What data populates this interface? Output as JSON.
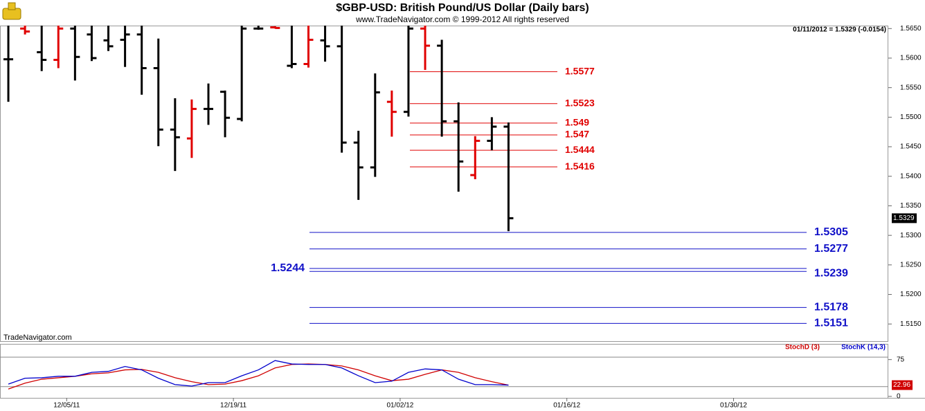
{
  "title": "$GBP-USD:  British Pound/US Dollar  (Daily bars)",
  "subtitle": "www.TradeNavigator.com © 1999-2012 All rights reserved",
  "readout": "01/11/2012 = 1.5329 (-0.0154)",
  "watermark": "TradeNavigator.com",
  "chart_data": [
    {
      "type": "ohlc",
      "categories": [
        null,
        null,
        null,
        null,
        "12/05/11",
        null,
        null,
        null,
        null,
        null,
        null,
        null,
        null,
        null,
        "12/19/11",
        null,
        null,
        null,
        null,
        null,
        null,
        null,
        null,
        null,
        "01/02/12",
        null,
        null,
        null,
        null,
        null,
        null,
        null,
        null,
        null,
        "01/16/12",
        null,
        null,
        null,
        null,
        null,
        null,
        null,
        null,
        null,
        "01/30/12"
      ],
      "open": [
        1.5598,
        1.565,
        1.561,
        1.5597,
        1.565,
        1.564,
        1.563,
        1.5631,
        1.564,
        1.5583,
        1.5479,
        1.5464,
        1.5514,
        1.5543,
        1.5497,
        1.565,
        1.5652,
        1.5587,
        1.559,
        1.563,
        1.562,
        1.5457,
        1.5415,
        1.5526,
        1.5509,
        1.565,
        1.5621,
        1.5493,
        1.5402,
        1.546,
        1.5484,
        null,
        null,
        null,
        null,
        null,
        null,
        null,
        null,
        null,
        null,
        null,
        null,
        null,
        null
      ],
      "high": [
        1.5665,
        1.5655,
        1.5665,
        1.566,
        1.566,
        1.566,
        1.566,
        1.566,
        1.566,
        1.5633,
        1.5532,
        1.553,
        1.5557,
        1.5545,
        1.566,
        1.5655,
        1.5654,
        1.566,
        1.566,
        1.566,
        1.566,
        1.5477,
        1.5574,
        1.5545,
        1.5665,
        1.5665,
        1.5631,
        1.5525,
        1.5468,
        1.55,
        1.5491,
        null,
        null,
        null,
        null,
        null,
        null,
        null,
        null,
        null,
        null,
        null,
        null,
        null,
        null
      ],
      "low": [
        1.5526,
        1.564,
        1.5578,
        1.5583,
        1.5562,
        1.5595,
        1.5612,
        1.5585,
        1.5538,
        1.5451,
        1.5409,
        1.5431,
        1.5487,
        1.5466,
        1.5493,
        1.5648,
        1.565,
        1.5583,
        1.5584,
        1.5594,
        1.544,
        1.536,
        1.5399,
        1.5467,
        1.5501,
        1.558,
        1.5467,
        1.5374,
        1.5395,
        1.5444,
        1.5307,
        null,
        null,
        null,
        null,
        null,
        null,
        null,
        null,
        null,
        null,
        null,
        null,
        null,
        null
      ],
      "close": [
        1.5598,
        1.5645,
        1.5597,
        1.565,
        1.5602,
        1.56,
        1.562,
        1.564,
        1.5583,
        1.5479,
        1.5466,
        1.5514,
        1.5514,
        1.5499,
        1.565,
        1.565,
        1.5651,
        1.559,
        1.5631,
        1.562,
        1.5457,
        1.5415,
        1.5542,
        1.5509,
        1.565,
        1.5621,
        1.5493,
        1.5425,
        1.546,
        1.5484,
        1.5329,
        null,
        null,
        null,
        null,
        null,
        null,
        null,
        null,
        null,
        null,
        null,
        null,
        null,
        null
      ],
      "bar_colors": [
        "#000000",
        "#e00000",
        "#000000",
        "#e00000",
        "#000000",
        "#000000",
        "#000000",
        "#000000",
        "#000000",
        "#000000",
        "#000000",
        "#e00000",
        "#000000",
        "#000000",
        "#000000",
        "#000000",
        "#e00000",
        "#000000",
        "#e00000",
        "#000000",
        "#000000",
        "#000000",
        "#000000",
        "#e00000",
        "#000000",
        "#e00000",
        "#000000",
        "#000000",
        "#e00000",
        "#000000",
        "#000000",
        null,
        null,
        null,
        null,
        null,
        null,
        null,
        null,
        null,
        null,
        null,
        null,
        null,
        null
      ],
      "ylim": [
        1.5121,
        1.5655
      ],
      "yticks": [
        {
          "value": 1.515,
          "label": "1.5150"
        },
        {
          "value": 1.52,
          "label": "1.5200"
        },
        {
          "value": 1.525,
          "label": "1.5250"
        },
        {
          "value": 1.53,
          "label": "1.5300"
        },
        {
          "value": 1.535,
          "label": "1.5350"
        },
        {
          "value": 1.54,
          "label": "1.5400"
        },
        {
          "value": 1.545,
          "label": "1.5450"
        },
        {
          "value": 1.55,
          "label": "1.5500"
        },
        {
          "value": 1.555,
          "label": "1.5550"
        },
        {
          "value": 1.56,
          "label": "1.5600"
        },
        {
          "value": 1.565,
          "label": "1.5650"
        }
      ],
      "levels_red": {
        "color": "#e00000",
        "values": [
          1.5577,
          1.5523,
          1.549,
          1.547,
          1.5444,
          1.5416
        ]
      },
      "levels_blue": {
        "color": "#1010c8",
        "values": [
          1.5305,
          1.5277,
          1.5244,
          1.5239,
          1.5178,
          1.5151
        ],
        "label_left": [
          false,
          false,
          true,
          false,
          false,
          false
        ]
      }
    },
    {
      "type": "line",
      "series": [
        {
          "name": "StochD (3)",
          "color": "#d00000",
          "values": [
            15,
            27,
            35,
            38,
            41,
            46,
            48,
            54,
            55,
            49,
            38,
            30,
            24,
            25,
            32,
            42,
            58,
            65,
            66,
            65,
            62,
            54,
            42,
            32,
            35,
            45,
            54,
            49,
            38,
            30,
            22.96,
            null,
            null,
            null,
            null,
            null,
            null,
            null,
            null,
            null,
            null,
            null,
            null,
            null,
            null
          ]
        },
        {
          "name": "StochK (14,3)",
          "color": "#0000cc",
          "values": [
            25,
            37,
            38,
            41,
            41,
            49,
            51,
            61,
            54,
            37,
            24,
            21,
            28,
            28,
            42,
            54,
            73,
            66,
            65,
            65,
            58,
            42,
            28,
            31,
            49,
            56,
            54,
            35,
            24,
            24,
            23,
            null,
            null,
            null,
            null,
            null,
            null,
            null,
            null,
            null,
            null,
            null,
            null,
            null,
            null
          ]
        }
      ],
      "ylim": [
        -3,
        107
      ],
      "yticks": [
        0,
        75
      ],
      "reference_lines": [
        80,
        20
      ]
    }
  ]
}
